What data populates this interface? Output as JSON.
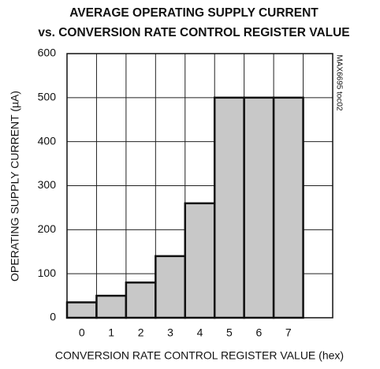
{
  "chart_data": {
    "type": "bar",
    "title": [
      "AVERAGE OPERATING SUPPLY CURRENT",
      "vs. CONVERSION RATE CONTROL REGISTER VALUE"
    ],
    "annotation": "MAX6695 toc02",
    "xlabel": "CONVERSION RATE CONTROL REGISTER VALUE (hex)",
    "ylabel": "OPERATING SUPPLY CURRENT (µA)",
    "categories": [
      "0",
      "1",
      "2",
      "3",
      "4",
      "5",
      "6",
      "7",
      null
    ],
    "values": [
      35,
      50,
      80,
      140,
      260,
      500,
      500,
      500,
      null
    ],
    "color": "#c8c8c8",
    "ylim": [
      0,
      600
    ],
    "yticks": [
      0,
      100,
      200,
      300,
      400,
      500,
      600
    ],
    "grid": true
  }
}
